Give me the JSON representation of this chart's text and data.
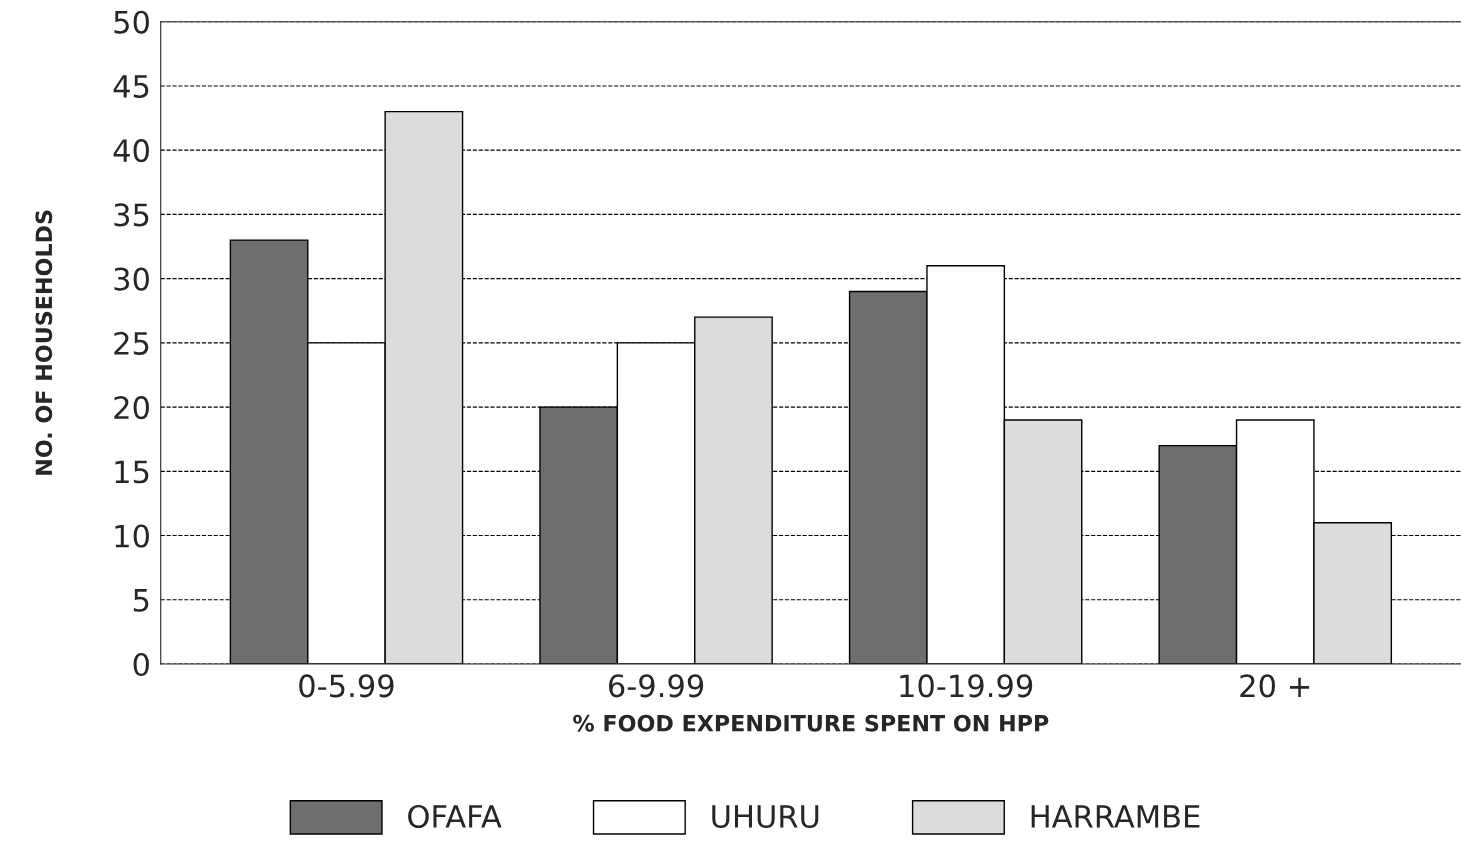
{
  "chart_data": {
    "type": "bar",
    "xlabel": "% FOOD EXPENDITURE SPENT ON HPP",
    "ylabel": "NO. OF HOUSEHOLDS",
    "categories": [
      "0-5.99",
      "6-9.99",
      "10-19.99",
      "20 +"
    ],
    "series": [
      {
        "name": "OFAFA",
        "color": "#6e6e6e",
        "values": [
          33,
          20,
          29,
          17
        ]
      },
      {
        "name": "UHURU",
        "color": "#ffffff",
        "values": [
          25,
          25,
          31,
          19
        ]
      },
      {
        "name": "HARRAMBE",
        "color": "#dcdcdc",
        "values": [
          43,
          27,
          19,
          11
        ]
      }
    ],
    "ylim": [
      0,
      50
    ],
    "yticks": [
      0,
      5,
      10,
      15,
      20,
      25,
      30,
      35,
      40,
      45,
      50
    ],
    "grid": "y",
    "legend": "bottom"
  }
}
